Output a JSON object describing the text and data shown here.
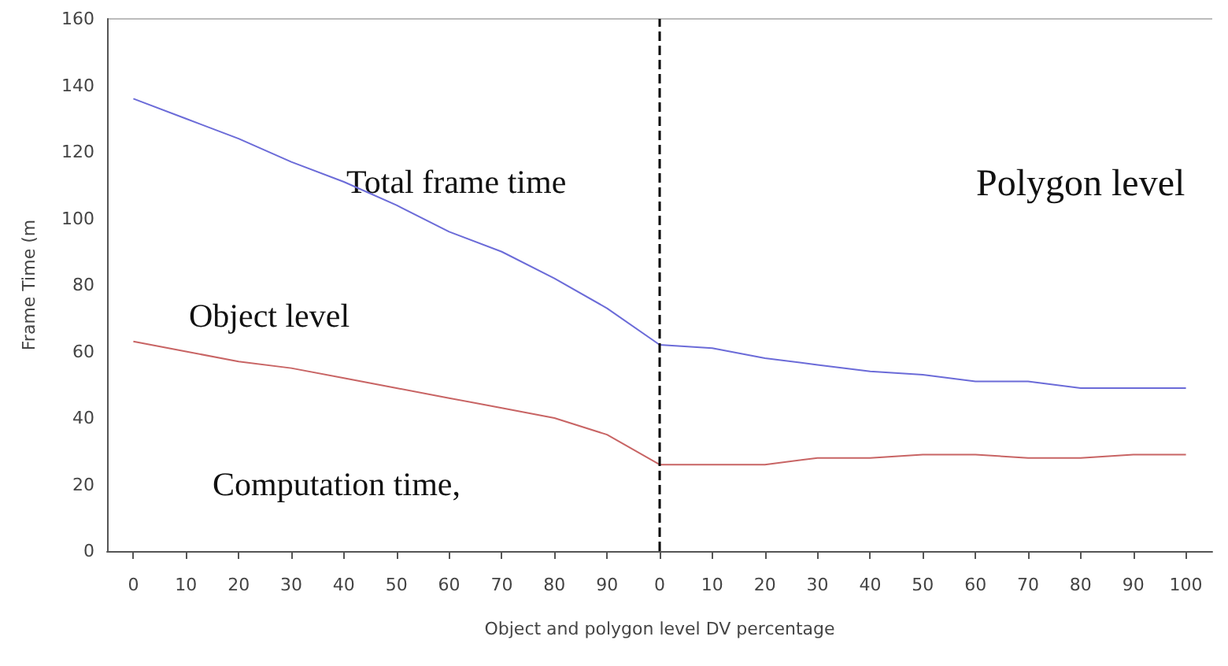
{
  "chart_data": {
    "type": "line",
    "xlabel": "Object and polygon level DV percentage",
    "ylabel": "Frame Time (m",
    "categories": [
      "0",
      "10",
      "20",
      "30",
      "40",
      "50",
      "60",
      "70",
      "80",
      "90",
      "0",
      "10",
      "20",
      "30",
      "40",
      "50",
      "60",
      "70",
      "80",
      "90",
      "100"
    ],
    "series": [
      {
        "color": "#6b6bd8",
        "values": [
          136,
          130,
          124,
          117,
          111,
          104,
          96,
          90,
          82,
          73,
          62,
          61,
          58,
          56,
          54,
          53,
          51,
          51,
          49,
          49,
          49
        ]
      },
      {
        "color": "#c86464",
        "values": [
          63,
          60,
          57,
          55,
          52,
          49,
          46,
          43,
          40,
          35,
          26,
          26,
          26,
          28,
          28,
          29,
          29,
          28,
          28,
          29,
          29
        ]
      }
    ],
    "ylim": [
      0,
      160
    ],
    "yticks": [
      0,
      20,
      40,
      60,
      80,
      100,
      120,
      140,
      160
    ],
    "marker": "none",
    "line_style": "solid",
    "annotations": [
      "Total frame time",
      "Polygon level",
      "Object level",
      "Computation time,"
    ]
  }
}
